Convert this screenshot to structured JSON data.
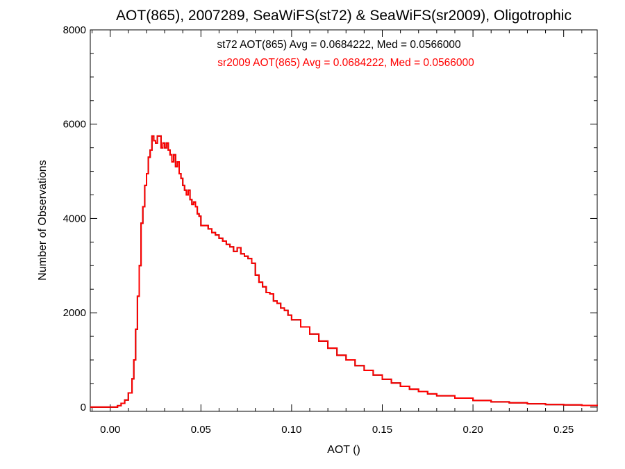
{
  "chart_data": {
    "type": "line",
    "title": "AOT(865), 2007289, SeaWiFS(st72) & SeaWiFS(sr2009), Oligotrophic",
    "xlabel": "AOT ()",
    "ylabel": "Number of Observations",
    "xlim": [
      -0.011,
      0.2685
    ],
    "ylim": [
      -90,
      8000
    ],
    "x_ticks": [
      0.0,
      0.05,
      0.1,
      0.15,
      0.2,
      0.25
    ],
    "x_tick_labels": [
      "0.00",
      "0.05",
      "0.10",
      "0.15",
      "0.20",
      "0.25"
    ],
    "y_ticks": [
      0,
      2000,
      4000,
      6000,
      8000
    ],
    "y_tick_labels": [
      "0",
      "2000",
      "4000",
      "6000",
      "8000"
    ],
    "grid": false,
    "step": true,
    "annotations": [
      {
        "text": "st72 AOT(865) Avg = 0.0684222, Med = 0.0566000",
        "color": "#000000"
      },
      {
        "text": "sr2009 AOT(865) Avg = 0.0684222, Med = 0.0566000",
        "color": "#ff0000"
      }
    ],
    "series": [
      {
        "name": "st72",
        "color": "#000000",
        "x": [
          -0.011,
          0.004,
          0.006,
          0.008,
          0.01,
          0.012,
          0.013,
          0.014,
          0.015,
          0.016,
          0.017,
          0.018,
          0.019,
          0.02,
          0.021,
          0.022,
          0.023,
          0.024,
          0.025,
          0.026,
          0.027,
          0.028,
          0.029,
          0.03,
          0.031,
          0.032,
          0.033,
          0.034,
          0.035,
          0.036,
          0.037,
          0.038,
          0.039,
          0.04,
          0.041,
          0.042,
          0.043,
          0.044,
          0.045,
          0.046,
          0.047,
          0.048,
          0.049,
          0.05,
          0.052,
          0.054,
          0.056,
          0.058,
          0.06,
          0.062,
          0.064,
          0.066,
          0.068,
          0.07,
          0.072,
          0.074,
          0.076,
          0.078,
          0.08,
          0.082,
          0.084,
          0.086,
          0.088,
          0.09,
          0.092,
          0.094,
          0.096,
          0.098,
          0.1,
          0.105,
          0.11,
          0.115,
          0.12,
          0.125,
          0.13,
          0.135,
          0.14,
          0.145,
          0.15,
          0.155,
          0.16,
          0.165,
          0.17,
          0.175,
          0.18,
          0.19,
          0.2,
          0.21,
          0.22,
          0.23,
          0.24,
          0.25,
          0.26,
          0.2685
        ],
        "y": [
          0,
          30,
          80,
          150,
          300,
          600,
          1000,
          1650,
          2350,
          3000,
          3900,
          4250,
          4700,
          4950,
          5300,
          5450,
          5750,
          5650,
          5600,
          5750,
          5750,
          5500,
          5600,
          5500,
          5600,
          5450,
          5350,
          5200,
          5350,
          5100,
          5200,
          4950,
          4850,
          4700,
          4600,
          4500,
          4600,
          4400,
          4300,
          4350,
          4250,
          4100,
          4050,
          3850,
          3850,
          3780,
          3700,
          3650,
          3580,
          3520,
          3450,
          3400,
          3300,
          3380,
          3250,
          3200,
          3150,
          3050,
          2800,
          2650,
          2550,
          2430,
          2400,
          2250,
          2200,
          2100,
          2050,
          1950,
          1850,
          1700,
          1550,
          1400,
          1250,
          1100,
          1000,
          880,
          780,
          680,
          590,
          510,
          440,
          380,
          330,
          280,
          240,
          190,
          140,
          110,
          90,
          70,
          55,
          45,
          35,
          25
        ]
      },
      {
        "name": "sr2009",
        "color": "#ff0000",
        "x": [
          -0.011,
          0.004,
          0.006,
          0.008,
          0.01,
          0.012,
          0.013,
          0.014,
          0.015,
          0.016,
          0.017,
          0.018,
          0.019,
          0.02,
          0.021,
          0.022,
          0.023,
          0.024,
          0.025,
          0.026,
          0.027,
          0.028,
          0.029,
          0.03,
          0.031,
          0.032,
          0.033,
          0.034,
          0.035,
          0.036,
          0.037,
          0.038,
          0.039,
          0.04,
          0.041,
          0.042,
          0.043,
          0.044,
          0.045,
          0.046,
          0.047,
          0.048,
          0.049,
          0.05,
          0.052,
          0.054,
          0.056,
          0.058,
          0.06,
          0.062,
          0.064,
          0.066,
          0.068,
          0.07,
          0.072,
          0.074,
          0.076,
          0.078,
          0.08,
          0.082,
          0.084,
          0.086,
          0.088,
          0.09,
          0.092,
          0.094,
          0.096,
          0.098,
          0.1,
          0.105,
          0.11,
          0.115,
          0.12,
          0.125,
          0.13,
          0.135,
          0.14,
          0.145,
          0.15,
          0.155,
          0.16,
          0.165,
          0.17,
          0.175,
          0.18,
          0.19,
          0.2,
          0.21,
          0.22,
          0.23,
          0.24,
          0.25,
          0.26,
          0.2685
        ],
        "y": [
          0,
          30,
          80,
          150,
          300,
          600,
          1000,
          1650,
          2350,
          3000,
          3900,
          4250,
          4700,
          4950,
          5300,
          5450,
          5750,
          5650,
          5600,
          5750,
          5750,
          5500,
          5600,
          5500,
          5600,
          5450,
          5350,
          5200,
          5350,
          5100,
          5200,
          4950,
          4850,
          4700,
          4600,
          4500,
          4600,
          4400,
          4300,
          4350,
          4250,
          4100,
          4050,
          3850,
          3850,
          3780,
          3700,
          3650,
          3580,
          3520,
          3450,
          3400,
          3300,
          3380,
          3250,
          3200,
          3150,
          3050,
          2800,
          2650,
          2550,
          2430,
          2400,
          2250,
          2200,
          2100,
          2050,
          1950,
          1850,
          1700,
          1550,
          1400,
          1250,
          1100,
          1000,
          880,
          780,
          680,
          590,
          510,
          440,
          380,
          330,
          280,
          240,
          190,
          140,
          110,
          90,
          70,
          55,
          45,
          35,
          25
        ]
      }
    ]
  }
}
